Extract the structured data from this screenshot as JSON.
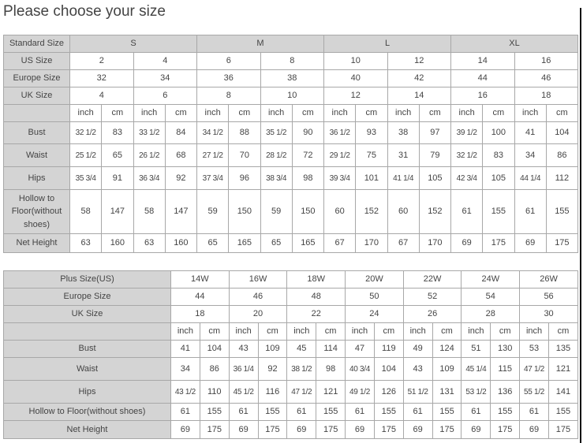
{
  "title": "Please choose your size",
  "table1": {
    "standard": {
      "label": "Standard Size",
      "values": [
        "S",
        "M",
        "L",
        "XL"
      ]
    },
    "us": {
      "label": "US Size",
      "values": [
        "2",
        "4",
        "6",
        "8",
        "10",
        "12",
        "14",
        "16"
      ]
    },
    "europe": {
      "label": "Europe Size",
      "values": [
        "32",
        "34",
        "36",
        "38",
        "40",
        "42",
        "44",
        "46"
      ]
    },
    "uk": {
      "label": "UK Size",
      "values": [
        "4",
        "6",
        "8",
        "10",
        "12",
        "14",
        "16",
        "18"
      ]
    },
    "units": [
      "inch",
      "cm"
    ],
    "rows": [
      {
        "label": "Bust",
        "values": [
          "32 1/2",
          "83",
          "33 1/2",
          "84",
          "34 1/2",
          "88",
          "35 1/2",
          "90",
          "36 1/2",
          "93",
          "38",
          "97",
          "39 1/2",
          "100",
          "41",
          "104"
        ]
      },
      {
        "label": "Waist",
        "values": [
          "25 1/2",
          "65",
          "26 1/2",
          "68",
          "27 1/2",
          "70",
          "28 1/2",
          "72",
          "29 1/2",
          "75",
          "31",
          "79",
          "32 1/2",
          "83",
          "34",
          "86"
        ]
      },
      {
        "label": "Hips",
        "values": [
          "35 3/4",
          "91",
          "36 3/4",
          "92",
          "37 3/4",
          "96",
          "38 3/4",
          "98",
          "39 3/4",
          "101",
          "41 1/4",
          "105",
          "42 3/4",
          "105",
          "44 1/4",
          "112"
        ]
      },
      {
        "label": "Hollow to Floor(without shoes)",
        "values": [
          "58",
          "147",
          "58",
          "147",
          "59",
          "150",
          "59",
          "150",
          "60",
          "152",
          "60",
          "152",
          "61",
          "155",
          "61",
          "155"
        ]
      },
      {
        "label": "Net Height",
        "values": [
          "63",
          "160",
          "63",
          "160",
          "65",
          "165",
          "65",
          "165",
          "67",
          "170",
          "67",
          "170",
          "69",
          "175",
          "69",
          "175"
        ]
      }
    ]
  },
  "table2": {
    "plus": {
      "label": "Plus Size(US)",
      "values": [
        "14W",
        "16W",
        "18W",
        "20W",
        "22W",
        "24W",
        "26W"
      ]
    },
    "europe": {
      "label": "Europe Size",
      "values": [
        "44",
        "46",
        "48",
        "50",
        "52",
        "54",
        "56"
      ]
    },
    "uk": {
      "label": "UK Size",
      "values": [
        "18",
        "20",
        "22",
        "24",
        "26",
        "28",
        "30"
      ]
    },
    "units": [
      "inch",
      "cm"
    ],
    "rows": [
      {
        "label": "Bust",
        "values": [
          "41",
          "104",
          "43",
          "109",
          "45",
          "114",
          "47",
          "119",
          "49",
          "124",
          "51",
          "130",
          "53",
          "135"
        ]
      },
      {
        "label": "Waist",
        "values": [
          "34",
          "86",
          "36 1/4",
          "92",
          "38 1/2",
          "98",
          "40 3/4",
          "104",
          "43",
          "109",
          "45 1/4",
          "115",
          "47 1/2",
          "121"
        ]
      },
      {
        "label": "Hips",
        "values": [
          "43 1/2",
          "110",
          "45 1/2",
          "116",
          "47 1/2",
          "121",
          "49 1/2",
          "126",
          "51 1/2",
          "131",
          "53 1/2",
          "136",
          "55 1/2",
          "141"
        ]
      },
      {
        "label": "Hollow to Floor(without shoes)",
        "values": [
          "61",
          "155",
          "61",
          "155",
          "61",
          "155",
          "61",
          "155",
          "61",
          "155",
          "61",
          "155",
          "61",
          "155"
        ]
      },
      {
        "label": "Net Height",
        "values": [
          "69",
          "175",
          "69",
          "175",
          "69",
          "175",
          "69",
          "175",
          "69",
          "175",
          "69",
          "175",
          "69",
          "175"
        ]
      }
    ]
  }
}
